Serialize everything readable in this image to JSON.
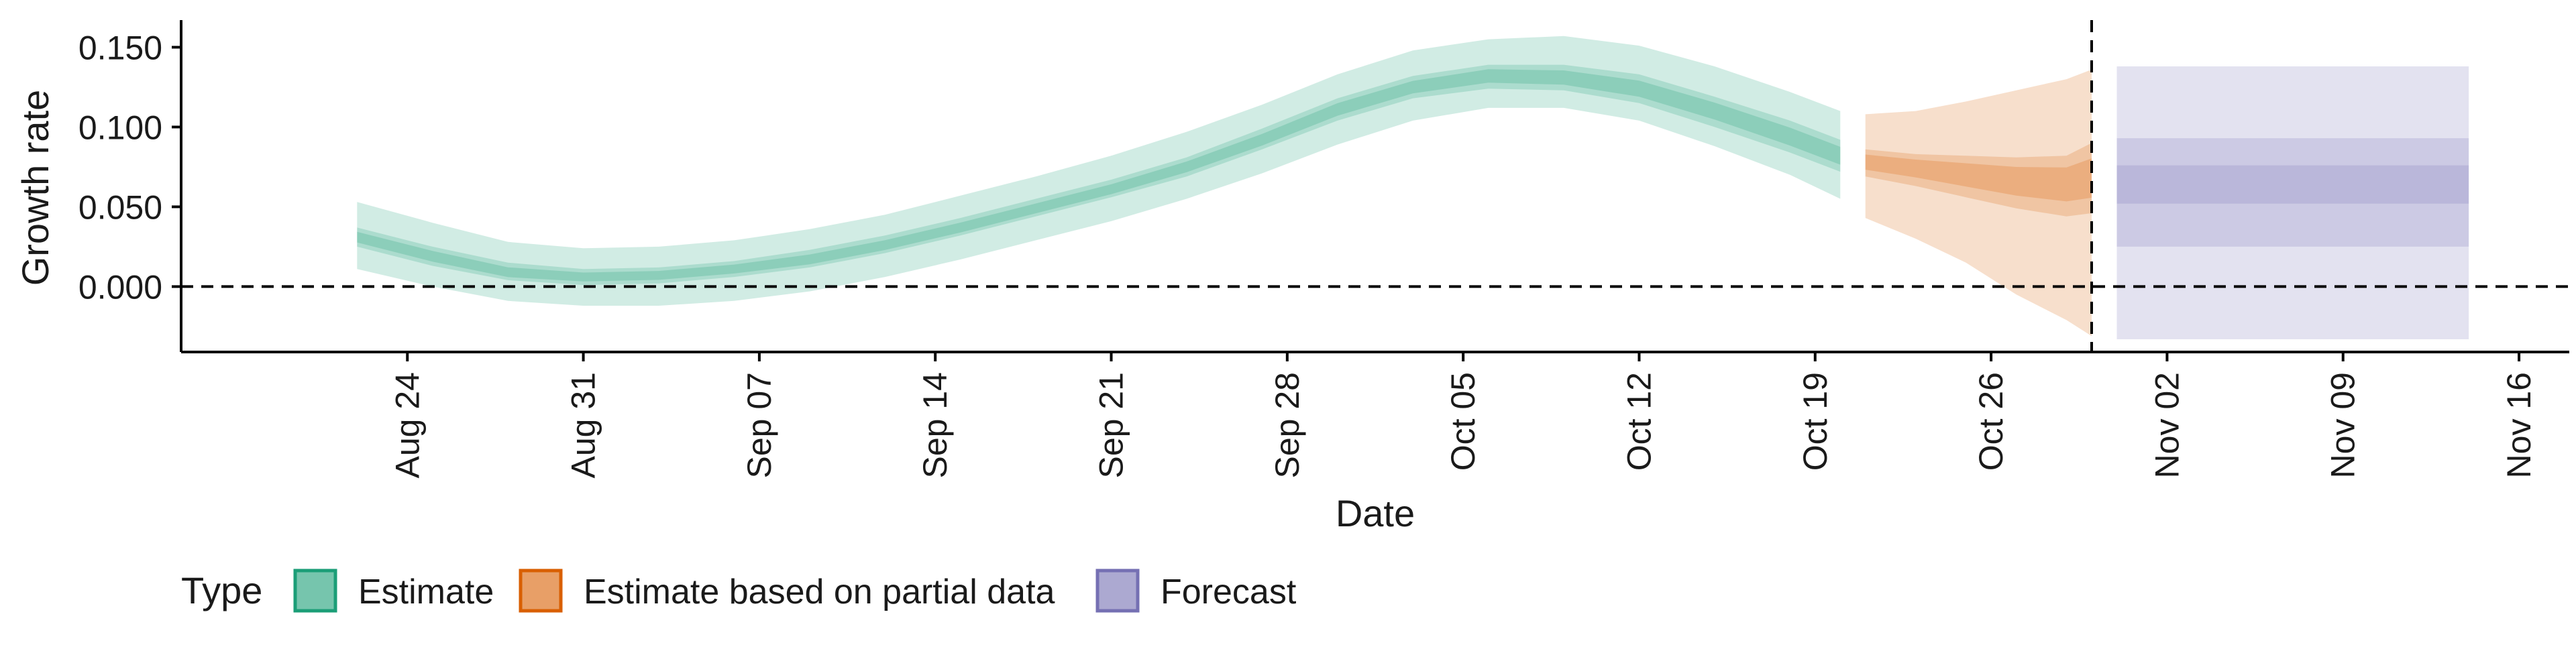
{
  "chart_data": {
    "type": "area",
    "xlabel": "Date",
    "ylabel": "Growth rate",
    "xlim": [
      "2020-08-15",
      "2020-11-18"
    ],
    "ylim": [
      -0.041,
      0.167
    ],
    "x_ticks": [
      {
        "date": "2020-08-24",
        "label": "Aug 24"
      },
      {
        "date": "2020-08-31",
        "label": "Aug 31"
      },
      {
        "date": "2020-09-07",
        "label": "Sep 07"
      },
      {
        "date": "2020-09-14",
        "label": "Sep 14"
      },
      {
        "date": "2020-09-21",
        "label": "Sep 21"
      },
      {
        "date": "2020-09-28",
        "label": "Sep 28"
      },
      {
        "date": "2020-10-05",
        "label": "Oct 05"
      },
      {
        "date": "2020-10-12",
        "label": "Oct 12"
      },
      {
        "date": "2020-10-19",
        "label": "Oct 19"
      },
      {
        "date": "2020-10-26",
        "label": "Oct 26"
      },
      {
        "date": "2020-11-02",
        "label": "Nov 02"
      },
      {
        "date": "2020-11-09",
        "label": "Nov 09"
      },
      {
        "date": "2020-11-16",
        "label": "Nov 16"
      }
    ],
    "y_ticks": [
      {
        "value": 0.0,
        "label": "0.000"
      },
      {
        "value": 0.05,
        "label": "0.050"
      },
      {
        "value": 0.1,
        "label": "0.100"
      },
      {
        "value": 0.15,
        "label": "0.150"
      }
    ],
    "hline_y": 0.0,
    "vline_date": "2020-10-30",
    "grid": false,
    "legend": {
      "position": "bottom-left",
      "title": "Type",
      "items": [
        {
          "label": "Estimate",
          "series": "estimate"
        },
        {
          "label": "Estimate based on partial data",
          "series": "partial"
        },
        {
          "label": "Forecast",
          "series": "forecast"
        }
      ]
    },
    "colors": {
      "estimate": "#1b9e77",
      "partial": "#d95f02",
      "forecast": "#7570b3",
      "axis": "#000000",
      "reference_line": "#000000"
    },
    "series": [
      {
        "id": "estimate",
        "dates": [
          "2020-08-22",
          "2020-08-25",
          "2020-08-28",
          "2020-08-31",
          "2020-09-03",
          "2020-09-06",
          "2020-09-09",
          "2020-09-12",
          "2020-09-15",
          "2020-09-18",
          "2020-09-21",
          "2020-09-24",
          "2020-09-27",
          "2020-09-30",
          "2020-10-03",
          "2020-10-06",
          "2020-10-09",
          "2020-10-12",
          "2020-10-15",
          "2020-10-18",
          "2020-10-20"
        ],
        "median": [
          0.031,
          0.019,
          0.009,
          0.006,
          0.007,
          0.011,
          0.017,
          0.026,
          0.037,
          0.049,
          0.061,
          0.075,
          0.092,
          0.111,
          0.125,
          0.132,
          0.131,
          0.124,
          0.11,
          0.094,
          0.082
        ],
        "lower50": [
          0.025,
          0.013,
          0.004,
          0.001,
          0.002,
          0.006,
          0.012,
          0.021,
          0.032,
          0.044,
          0.056,
          0.069,
          0.086,
          0.104,
          0.118,
          0.124,
          0.123,
          0.115,
          0.1,
          0.084,
          0.072
        ],
        "upper50": [
          0.037,
          0.025,
          0.015,
          0.011,
          0.012,
          0.016,
          0.023,
          0.032,
          0.043,
          0.055,
          0.067,
          0.081,
          0.099,
          0.118,
          0.132,
          0.139,
          0.139,
          0.133,
          0.119,
          0.104,
          0.092
        ],
        "lower90": [
          0.011,
          0.0,
          -0.009,
          -0.012,
          -0.012,
          -0.009,
          -0.003,
          0.006,
          0.017,
          0.029,
          0.041,
          0.055,
          0.071,
          0.089,
          0.104,
          0.112,
          0.112,
          0.104,
          0.088,
          0.07,
          0.055
        ],
        "upper90": [
          0.053,
          0.04,
          0.028,
          0.024,
          0.025,
          0.029,
          0.036,
          0.045,
          0.057,
          0.069,
          0.082,
          0.097,
          0.114,
          0.133,
          0.148,
          0.155,
          0.157,
          0.151,
          0.138,
          0.122,
          0.11
        ]
      },
      {
        "id": "partial",
        "dates": [
          "2020-10-21",
          "2020-10-23",
          "2020-10-25",
          "2020-10-27",
          "2020-10-29",
          "2020-10-30"
        ],
        "median": [
          0.078,
          0.074,
          0.07,
          0.066,
          0.064,
          0.068
        ],
        "lower50": [
          0.069,
          0.063,
          0.056,
          0.049,
          0.044,
          0.046
        ],
        "upper50": [
          0.086,
          0.083,
          0.082,
          0.081,
          0.082,
          0.09
        ],
        "lower90": [
          0.043,
          0.03,
          0.015,
          -0.005,
          -0.021,
          -0.031
        ],
        "upper90": [
          0.108,
          0.11,
          0.116,
          0.123,
          0.13,
          0.136
        ]
      },
      {
        "id": "forecast",
        "dates": [
          "2020-10-31",
          "2020-11-14"
        ],
        "median": [
          0.063,
          0.063
        ],
        "lower20": [
          0.052,
          0.052
        ],
        "upper20": [
          0.076,
          0.076
        ],
        "lower50": [
          0.025,
          0.025
        ],
        "upper50": [
          0.093,
          0.093
        ],
        "lower90": [
          -0.033,
          -0.033
        ],
        "upper90": [
          0.138,
          0.138
        ]
      }
    ]
  }
}
